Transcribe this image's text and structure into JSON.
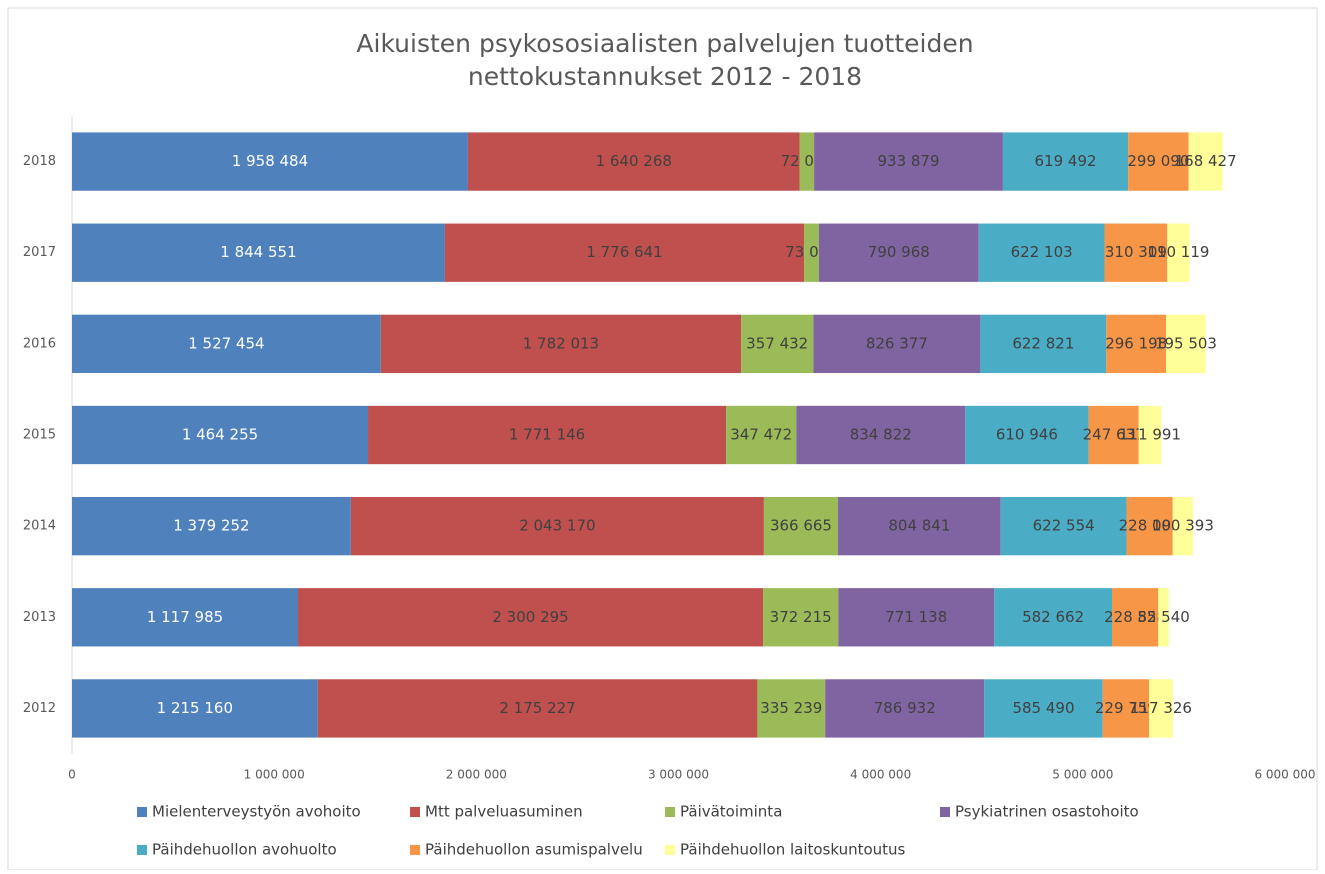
{
  "chart_data": {
    "type": "stacked_barh",
    "title": [
      "Aikuisten psykososiaalisten palvelujen tuotteiden",
      "nettokustannukset 2012 - 2018"
    ],
    "categories": [
      "2018",
      "2017",
      "2016",
      "2015",
      "2014",
      "2013",
      "2012"
    ],
    "series": [
      {
        "name": "Mielenterveystyön avohoito",
        "color": "#4f81bd",
        "values": [
          1958484,
          1844551,
          1527454,
          1464255,
          1379252,
          1117985,
          1215160
        ],
        "value_labels": [
          "1 958 484",
          "1 844 551",
          "1 527 454",
          "1 464 255",
          "1 379 252",
          "1 117 985",
          "1 215 160"
        ]
      },
      {
        "name": "Mtt palveluasuminen",
        "color": "#c0504d",
        "values": [
          1640268,
          1776641,
          1782013,
          1771146,
          2043170,
          2300295,
          2175227
        ],
        "value_labels": [
          "1 640 268",
          "1 776 641",
          "1 782 013",
          "1 771 146",
          "2 043 170",
          "2 300 295",
          "2 175 227"
        ]
      },
      {
        "name": "Päivätoiminta",
        "color": "#9bbb59",
        "values": [
          72017,
          73061,
          357432,
          347472,
          366665,
          372215,
          335239
        ],
        "value_labels": [
          "72 017",
          "73 061",
          "357 432",
          "347 472",
          "366 665",
          "372 215",
          "335 239"
        ]
      },
      {
        "name": "Psykiatrinen osastohoito",
        "color": "#8064a2",
        "values": [
          933879,
          790968,
          826377,
          834822,
          804841,
          771138,
          786932
        ],
        "value_labels": [
          "933 879",
          "790 968",
          "826 377",
          "834 822",
          "804 841",
          "771 138",
          "786 932"
        ]
      },
      {
        "name": "Päihdehuollon avohuolto",
        "color": "#4bacc6",
        "values": [
          619492,
          622103,
          622821,
          610946,
          622554,
          582662,
          585490
        ],
        "value_labels": [
          "619 492",
          "622 103",
          "622 821",
          "610 946",
          "622 554",
          "582 662",
          "585 490"
        ]
      },
      {
        "name": "Päihdehuollon asumispalvelu",
        "color": "#f79646",
        "values": [
          299090,
          310309,
          296198,
          247637,
          228095,
          228858,
          229759
        ],
        "value_labels": [
          "299 090",
          "310 309",
          "296 198",
          "247 637",
          "228 095",
          "228 858",
          "229 759"
        ]
      },
      {
        "name": "Päihdehuollon laitoskuntoutus",
        "color": "#ffff99",
        "values": [
          168427,
          110119,
          195503,
          111991,
          100393,
          52540,
          117326
        ],
        "value_labels": [
          "168 427",
          "110 119",
          "195 503",
          "111 991",
          "100 393",
          "52 540",
          "117 326"
        ]
      }
    ],
    "xlim": [
      0,
      6000000
    ],
    "xticks": [
      0,
      {
        "value": 1000000,
        "label": "1 000 000"
      },
      {
        "value": 2000000,
        "label": "2 000 000"
      },
      {
        "value": 3000000,
        "label": "3 000 000"
      },
      {
        "value": 4000000,
        "label": "4 000 000"
      },
      {
        "value": 5000000,
        "label": "5 000 000"
      },
      {
        "value": 6000000,
        "label": "6 000 000"
      }
    ],
    "grid": false,
    "legend": "bottom"
  }
}
